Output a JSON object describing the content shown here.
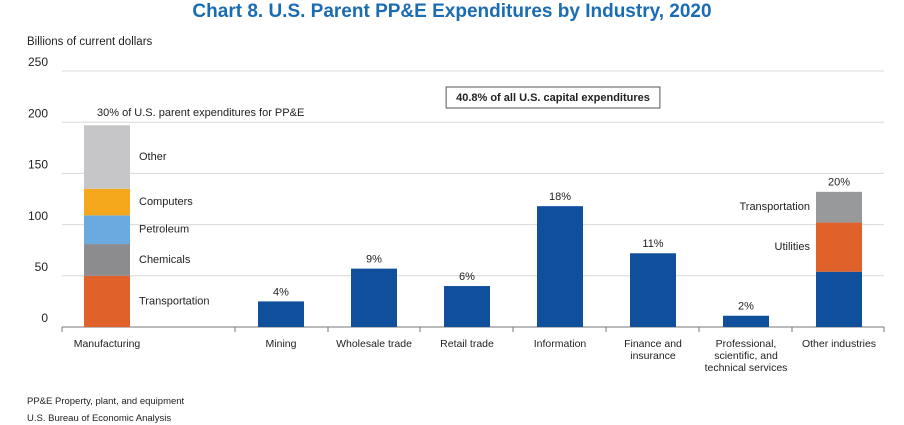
{
  "chart_data": {
    "type": "stacked-bar",
    "title": "Chart 8. U.S. Parent PP&E Expenditures by Industry, 2020",
    "y_label": "Billions of current dollars",
    "annotation": "40.8% of all U.S. capital expenditures",
    "notes": [
      "PP&E  Property, plant, and equipment",
      "U.S. Bureau of Economic Analysis"
    ],
    "categories": [
      "Manufacturing",
      "Mining",
      "Wholesale trade",
      "Retail trade",
      "Information",
      "Finance and insurance",
      "Professional, scientific, and technical services",
      "Other industries"
    ],
    "share_labels": [
      "30% of U.S. parent expenditures for PP&E",
      "4%",
      "9%",
      "6%",
      "18%",
      "11%",
      "2%",
      "20%"
    ],
    "series": [
      {
        "color": "#0f4f9b",
        "values": [
          null,
          25,
          57,
          40,
          118,
          72,
          11,
          54
        ]
      },
      {
        "name": "Transportation",
        "color": "#e0622a",
        "values": [
          50,
          null,
          null,
          null,
          null,
          null,
          null,
          null
        ]
      },
      {
        "name": "Chemicals",
        "color": "#8c8c8e",
        "values": [
          31,
          null,
          null,
          null,
          null,
          null,
          null,
          null
        ]
      },
      {
        "name": "Petroleum",
        "color": "#6aaae0",
        "values": [
          28,
          null,
          null,
          null,
          null,
          null,
          null,
          null
        ]
      },
      {
        "name": "Computers",
        "color": "#f5a81c",
        "values": [
          26,
          null,
          null,
          null,
          null,
          null,
          null,
          null
        ]
      },
      {
        "name": "Other",
        "color": "#c6c6c8",
        "values": [
          62,
          null,
          null,
          null,
          null,
          null,
          null,
          null
        ]
      },
      {
        "name": "Utilities",
        "color": "#e0622a",
        "values": [
          null,
          null,
          null,
          null,
          null,
          null,
          null,
          48
        ]
      },
      {
        "name": "Transportation",
        "color": "#97999b",
        "values": [
          null,
          null,
          null,
          null,
          null,
          null,
          null,
          30
        ]
      }
    ],
    "ylim": [
      0,
      250
    ],
    "yticks": [
      0,
      50,
      100,
      150,
      200,
      250
    ],
    "grid": true
  }
}
